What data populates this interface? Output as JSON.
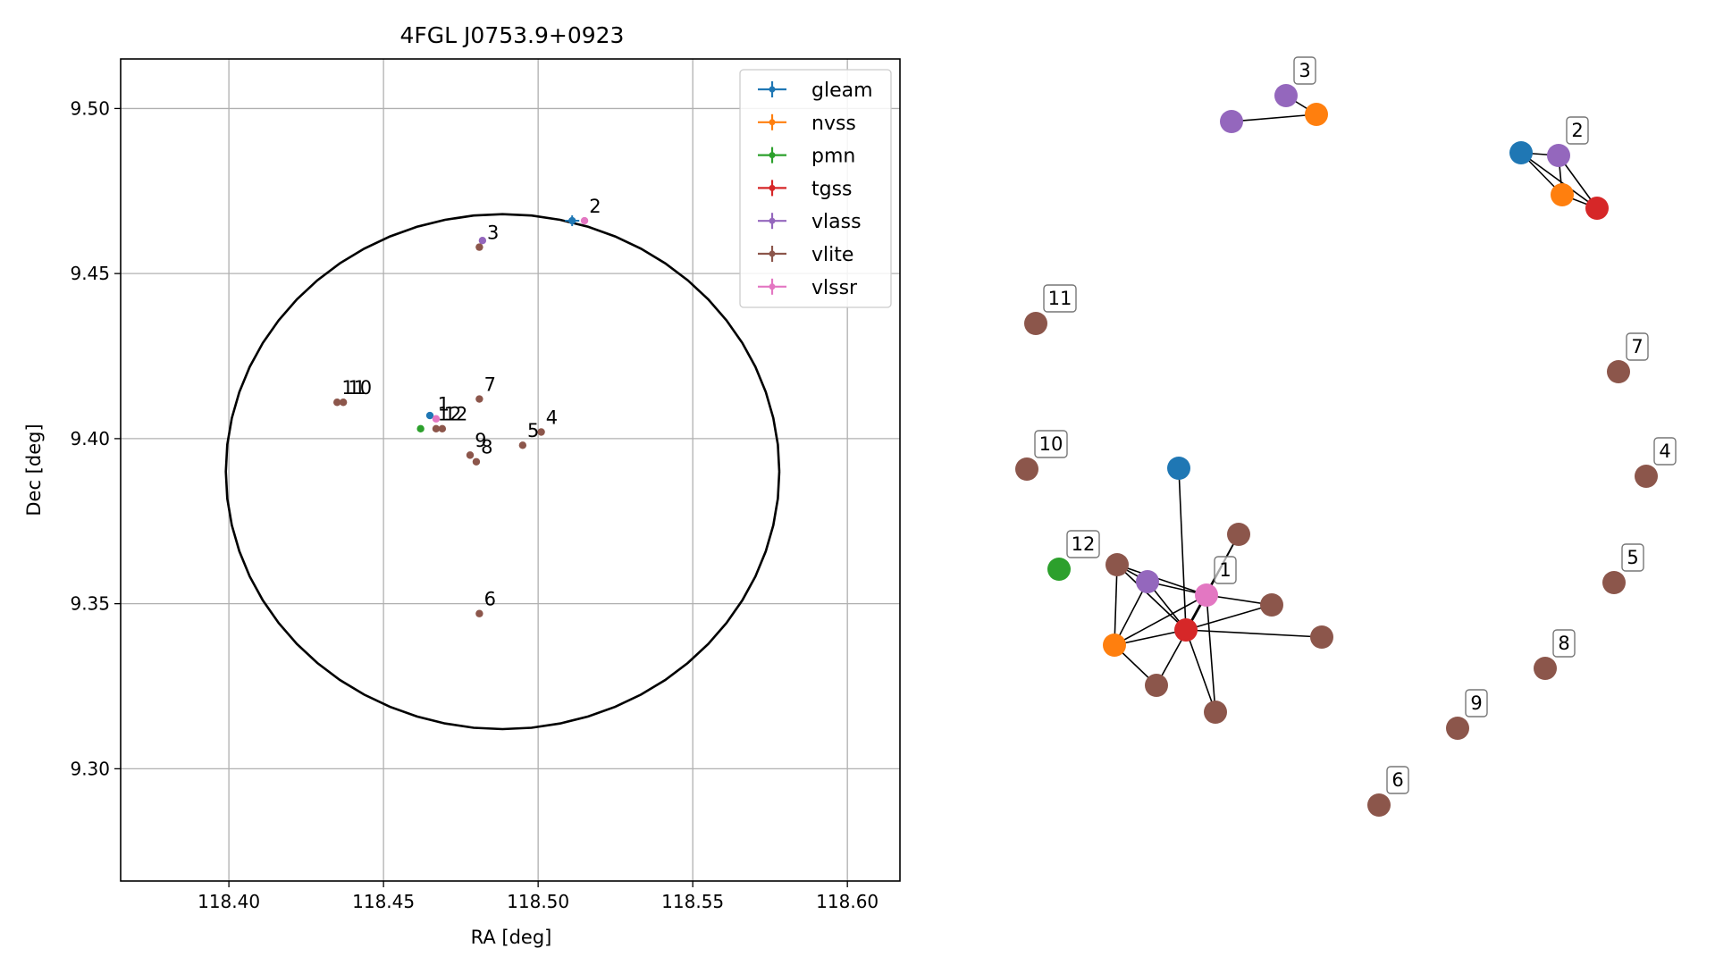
{
  "chart_data": [
    {
      "type": "scatter",
      "title": "4FGL J0753.9+0923",
      "xlabel": "RA [deg]",
      "ylabel": "Dec [deg]",
      "xlim": [
        118.365,
        118.617
      ],
      "ylim": [
        9.266,
        9.515
      ],
      "grid": true,
      "x_ticks": [
        118.4,
        118.45,
        118.5,
        118.55,
        118.6
      ],
      "y_ticks": [
        9.3,
        9.35,
        9.4,
        9.45,
        9.5
      ],
      "x_tick_labels": [
        "118.40",
        "118.45",
        "118.50",
        "118.55",
        "118.60"
      ],
      "y_tick_labels": [
        "9.30",
        "9.35",
        "9.40",
        "9.45",
        "9.50"
      ],
      "legend_position": "top-right",
      "ellipse": {
        "center": [
          118.4885,
          9.39
        ],
        "ra_radius": 0.0895,
        "dec_radius": 0.078,
        "color": "#000000"
      },
      "series": [
        {
          "name": "gleam",
          "color": "#1f77b4",
          "points": [
            {
              "x": 118.465,
              "y": 9.407
            },
            {
              "x": 118.511,
              "y": 9.466,
              "err": true
            }
          ]
        },
        {
          "name": "nvss",
          "color": "#ff7f0e",
          "points": []
        },
        {
          "name": "pmn",
          "color": "#2ca02c",
          "points": [
            {
              "x": 118.462,
              "y": 9.403
            }
          ]
        },
        {
          "name": "tgss",
          "color": "#d62728",
          "points": []
        },
        {
          "name": "vlass",
          "color": "#9467bd",
          "points": [
            {
              "x": 118.482,
              "y": 9.46
            }
          ]
        },
        {
          "name": "vlite",
          "color": "#8c564b",
          "points": [
            {
              "x": 118.435,
              "y": 9.411
            },
            {
              "x": 118.437,
              "y": 9.411
            },
            {
              "x": 118.467,
              "y": 9.403
            },
            {
              "x": 118.469,
              "y": 9.403
            },
            {
              "x": 118.481,
              "y": 9.412
            },
            {
              "x": 118.478,
              "y": 9.395
            },
            {
              "x": 118.48,
              "y": 9.393
            },
            {
              "x": 118.495,
              "y": 9.398
            },
            {
              "x": 118.501,
              "y": 9.402
            },
            {
              "x": 118.481,
              "y": 9.347
            },
            {
              "x": 118.481,
              "y": 9.458
            }
          ]
        },
        {
          "name": "vlssr",
          "color": "#e377c2",
          "points": [
            {
              "x": 118.467,
              "y": 9.406
            },
            {
              "x": 118.515,
              "y": 9.466
            }
          ]
        }
      ],
      "point_labels": [
        {
          "text": "1",
          "x": 118.4675,
          "y": 9.4085
        },
        {
          "text": "2",
          "x": 118.5165,
          "y": 9.4685
        },
        {
          "text": "3",
          "x": 118.4835,
          "y": 9.4605
        },
        {
          "text": "4",
          "x": 118.5025,
          "y": 9.4045
        },
        {
          "text": "5",
          "x": 118.4965,
          "y": 9.4005
        },
        {
          "text": "6",
          "x": 118.4825,
          "y": 9.3495
        },
        {
          "text": "7",
          "x": 118.4825,
          "y": 9.4145
        },
        {
          "text": "8",
          "x": 118.4815,
          "y": 9.3955
        },
        {
          "text": "9",
          "x": 118.4795,
          "y": 9.3975
        },
        {
          "text": "10",
          "x": 118.4385,
          "y": 9.4135
        },
        {
          "text": "11",
          "x": 118.4365,
          "y": 9.4135
        },
        {
          "text": "12",
          "x": 118.4675,
          "y": 9.4055
        },
        {
          "text": "12",
          "x": 118.4695,
          "y": 9.4055
        }
      ]
    },
    {
      "type": "network",
      "colors": {
        "gleam": "#1f77b4",
        "nvss": "#ff7f0e",
        "pmn": "#2ca02c",
        "tgss": "#d62728",
        "vlass": "#9467bd",
        "vlite": "#8c564b",
        "vlssr": "#e377c2"
      },
      "nodes": [
        {
          "id": "c1_vlssr",
          "group": "vlssr",
          "label": "1"
        },
        {
          "id": "c1_gleam",
          "group": "gleam"
        },
        {
          "id": "c1_vlite_a",
          "group": "vlite"
        },
        {
          "id": "c1_vlite_b",
          "group": "vlite"
        },
        {
          "id": "c1_vlite_c",
          "group": "vlite"
        },
        {
          "id": "c1_vlite_d",
          "group": "vlite"
        },
        {
          "id": "c1_vlite_e",
          "group": "vlite"
        },
        {
          "id": "c1_vlite_f",
          "group": "vlite"
        },
        {
          "id": "c1_vlass",
          "group": "vlass"
        },
        {
          "id": "c1_nvss",
          "group": "nvss"
        },
        {
          "id": "c1_tgss",
          "group": "tgss"
        },
        {
          "id": "c2_gleam",
          "group": "gleam"
        },
        {
          "id": "c2_vlass",
          "group": "vlass",
          "label": "2"
        },
        {
          "id": "c2_nvss",
          "group": "nvss"
        },
        {
          "id": "c2_tgss",
          "group": "tgss"
        },
        {
          "id": "c3_vlass_a",
          "group": "vlass"
        },
        {
          "id": "c3_vlass_b",
          "group": "vlass",
          "label": "3"
        },
        {
          "id": "c3_nvss",
          "group": "nvss"
        },
        {
          "id": "n4",
          "group": "vlite",
          "label": "4"
        },
        {
          "id": "n5",
          "group": "vlite",
          "label": "5"
        },
        {
          "id": "n6",
          "group": "vlite",
          "label": "6"
        },
        {
          "id": "n7",
          "group": "vlite",
          "label": "7"
        },
        {
          "id": "n8",
          "group": "vlite",
          "label": "8"
        },
        {
          "id": "n9",
          "group": "vlite",
          "label": "9"
        },
        {
          "id": "n10",
          "group": "vlite",
          "label": "10"
        },
        {
          "id": "n11",
          "group": "vlite",
          "label": "11"
        },
        {
          "id": "n12",
          "group": "pmn",
          "label": "12"
        }
      ],
      "edges": [
        [
          "c1_gleam",
          "c1_tgss"
        ],
        [
          "c1_vlite_a",
          "c1_vlass"
        ],
        [
          "c1_vlite_a",
          "c1_nvss"
        ],
        [
          "c1_vlite_a",
          "c1_tgss"
        ],
        [
          "c1_vlite_a",
          "c1_vlssr"
        ],
        [
          "c1_vlass",
          "c1_nvss"
        ],
        [
          "c1_vlass",
          "c1_tgss"
        ],
        [
          "c1_vlass",
          "c1_vlssr"
        ],
        [
          "c1_nvss",
          "c1_tgss"
        ],
        [
          "c1_nvss",
          "c1_vlssr"
        ],
        [
          "c1_nvss",
          "c1_vlite_c"
        ],
        [
          "c1_tgss",
          "c1_vlssr"
        ],
        [
          "c1_tgss",
          "c1_vlite_b"
        ],
        [
          "c1_tgss",
          "c1_vlite_d"
        ],
        [
          "c1_tgss",
          "c1_vlite_e"
        ],
        [
          "c1_tgss",
          "c1_vlite_f"
        ],
        [
          "c1_vlssr",
          "c1_vlite_b"
        ],
        [
          "c1_vlssr",
          "c1_vlite_c"
        ],
        [
          "c1_vlssr",
          "c1_vlite_d"
        ],
        [
          "c1_vlssr",
          "c1_vlite_f"
        ],
        [
          "c2_gleam",
          "c2_vlass"
        ],
        [
          "c2_gleam",
          "c2_nvss"
        ],
        [
          "c2_gleam",
          "c2_tgss"
        ],
        [
          "c2_vlass",
          "c2_nvss"
        ],
        [
          "c2_vlass",
          "c2_tgss"
        ],
        [
          "c2_nvss",
          "c2_tgss"
        ],
        [
          "c3_vlass_a",
          "c3_nvss"
        ],
        [
          "c3_vlass_b",
          "c3_nvss"
        ]
      ]
    }
  ]
}
